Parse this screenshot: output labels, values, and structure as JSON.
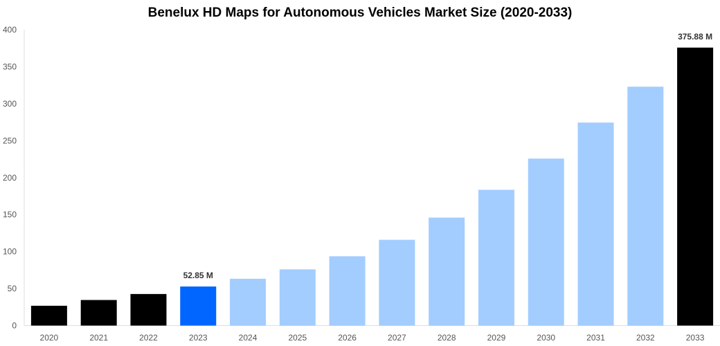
{
  "chart_data": {
    "type": "bar",
    "title": "Benelux HD Maps for Autonomous Vehicles Market Size (2020-2033)",
    "xlabel": "",
    "ylabel": "",
    "ylim": [
      0,
      400
    ],
    "yticks": [
      0,
      50,
      100,
      150,
      200,
      250,
      300,
      350,
      400
    ],
    "grid": false,
    "categories": [
      "2020",
      "2021",
      "2022",
      "2023",
      "2024",
      "2025",
      "2026",
      "2027",
      "2028",
      "2029",
      "2030",
      "2031",
      "2032",
      "2033"
    ],
    "values": [
      26.8,
      34.6,
      42.7,
      52.85,
      63.3,
      76.0,
      93.7,
      116.0,
      146.0,
      183.6,
      225.8,
      274.5,
      323.0,
      375.88
    ],
    "colors": [
      "#000000",
      "#000000",
      "#000000",
      "#0066ff",
      "#a3cdff",
      "#a3cdff",
      "#a3cdff",
      "#a3cdff",
      "#a3cdff",
      "#a3cdff",
      "#a3cdff",
      "#a3cdff",
      "#a3cdff",
      "#000000"
    ],
    "data_labels": [
      {
        "index": 3,
        "text": "52.85 M"
      },
      {
        "index": 13,
        "text": "375.88 M"
      }
    ]
  }
}
